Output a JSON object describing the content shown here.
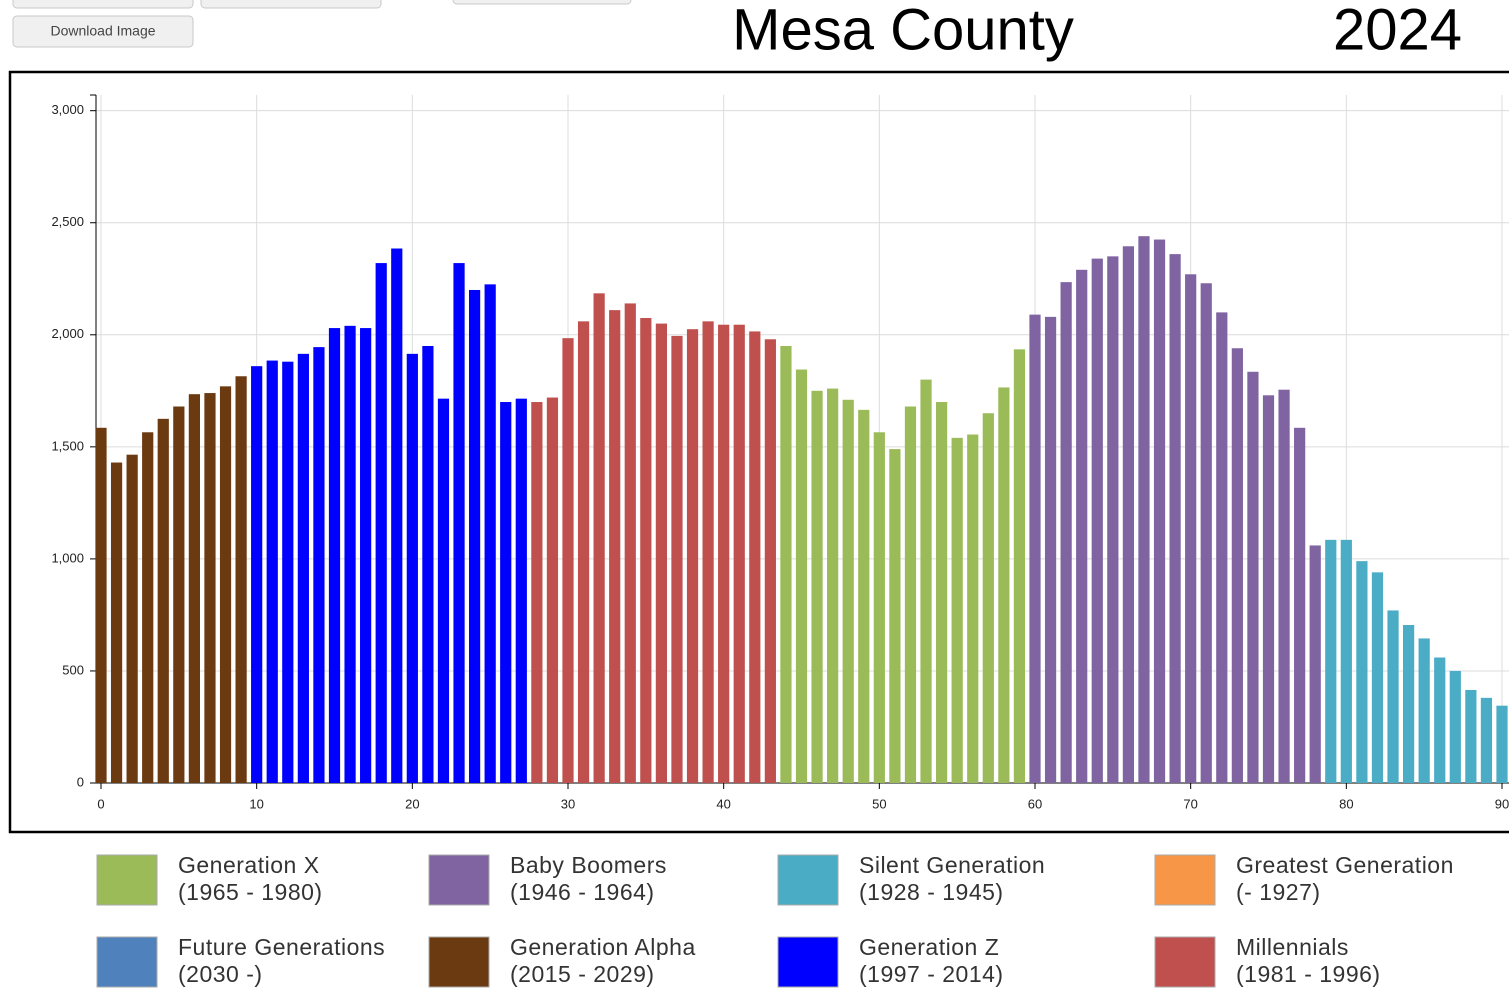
{
  "button": "Download Image",
  "chart_data": {
    "type": "bar",
    "title": "Mesa County",
    "year": "2024",
    "xlim": [
      0,
      90
    ],
    "xticks": [
      0,
      10,
      20,
      30,
      40,
      50,
      60,
      70,
      80,
      90
    ],
    "ylim": [
      0,
      3070
    ],
    "yticks": [
      0,
      500,
      {
        "value": 1000,
        "label": "1,000"
      },
      {
        "value": 1500,
        "label": "1,500"
      },
      {
        "value": 2000,
        "label": "2,000"
      },
      {
        "value": 2500,
        "label": "2,500"
      },
      {
        "value": 3000,
        "label": "3,000"
      }
    ],
    "grid": true,
    "series": [
      {
        "name": "Generation X",
        "years": "(1965 - 1980)",
        "color": "#9bbb59",
        "x": [
          44,
          45,
          46,
          47,
          48,
          49,
          50,
          51,
          52,
          53,
          54,
          55,
          56,
          57,
          58,
          59
        ],
        "values": [
          1950,
          1845,
          1750,
          1760,
          1710,
          1665,
          1565,
          1490,
          1680,
          1800,
          1700,
          1540,
          1555,
          1650,
          1765,
          1935
        ]
      },
      {
        "name": "Baby Boomers",
        "years": "(1946 - 1964)",
        "color": "#8064a2",
        "x": [
          60,
          61,
          62,
          63,
          64,
          65,
          66,
          67,
          68,
          69,
          70,
          71,
          72,
          73,
          74,
          75,
          76,
          77,
          78
        ],
        "values": [
          2090,
          2080,
          2235,
          2290,
          2340,
          2350,
          2395,
          2440,
          2425,
          2360,
          2270,
          2230,
          2100,
          1940,
          1835,
          1730,
          1755,
          1585,
          1060
        ]
      },
      {
        "name": "Silent Generation",
        "years": "(1928 - 1945)",
        "color": "#4bacc6",
        "x": [
          79,
          80,
          81,
          82,
          83,
          84,
          85,
          86,
          87,
          88,
          89,
          90
        ],
        "values": [
          1085,
          1085,
          990,
          940,
          770,
          705,
          645,
          560,
          500,
          415,
          380,
          345
        ]
      },
      {
        "name": "Greatest Generation",
        "years": "(- 1927)",
        "color": "#f79646",
        "x": [],
        "values": []
      },
      {
        "name": "Future Generations",
        "years": "(2030 -)",
        "color": "#4f81bd",
        "x": [],
        "values": []
      },
      {
        "name": "Generation Alpha",
        "years": "(2015 - 2029)",
        "color": "#6b3a10",
        "x": [
          0,
          1,
          2,
          3,
          4,
          5,
          6,
          7,
          8,
          9
        ],
        "values": [
          1585,
          1430,
          1465,
          1565,
          1625,
          1680,
          1735,
          1740,
          1770,
          1815
        ]
      },
      {
        "name": "Generation Z",
        "years": "(1997 - 2014)",
        "color": "#0000ff",
        "x": [
          10,
          11,
          12,
          13,
          14,
          15,
          16,
          17,
          18,
          19,
          20,
          21,
          22,
          23,
          24,
          25,
          26,
          27
        ],
        "values": [
          1860,
          1885,
          1880,
          1915,
          1945,
          2030,
          2040,
          2030,
          2320,
          2385,
          1915,
          1950,
          1715,
          2320,
          2200,
          2225,
          1700,
          1715
        ]
      },
      {
        "name": "Millennials",
        "years": "(1981 - 1996)",
        "color": "#c0504d",
        "x": [
          28,
          29,
          30,
          31,
          32,
          33,
          34,
          35,
          36,
          37,
          38,
          39,
          40,
          41,
          42,
          43
        ],
        "values": [
          1700,
          1720,
          1985,
          2060,
          2185,
          2110,
          2140,
          2075,
          2050,
          1995,
          2025,
          2060,
          2045,
          2045,
          2015,
          1980
        ]
      }
    ]
  }
}
